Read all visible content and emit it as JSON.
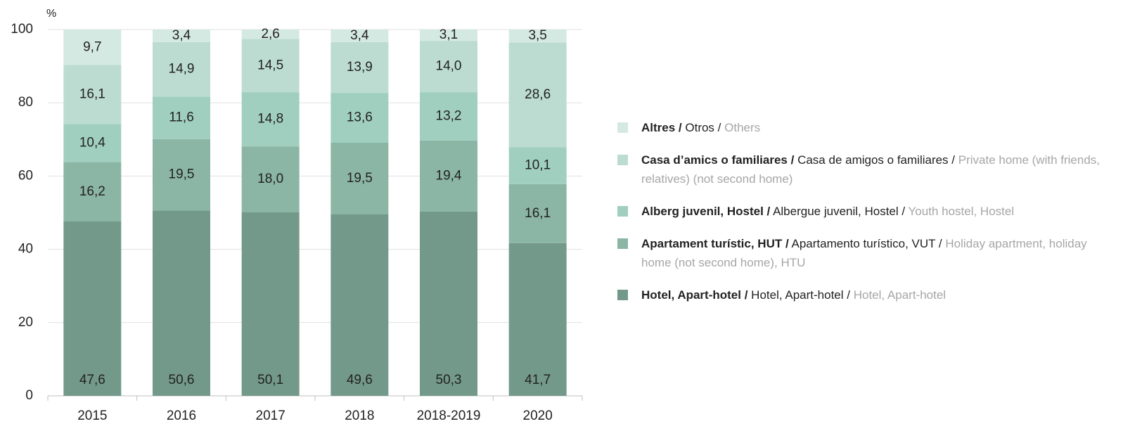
{
  "chart_data": {
    "type": "bar",
    "stacked": true,
    "ylabel": "%",
    "categories": [
      "2015",
      "2016",
      "2017",
      "2018",
      "2018-2019",
      "2020"
    ],
    "ylim": [
      0,
      100
    ],
    "yticks": [
      0,
      20,
      40,
      60,
      80,
      100
    ],
    "grid": true,
    "series": [
      {
        "name": [
          "Hotel, Apart-hotel /",
          "Hotel, Apart-hotel /",
          "Hotel, Apart-hotel"
        ],
        "color": "#73998a",
        "values": [
          47.6,
          50.6,
          50.1,
          49.6,
          50.3,
          41.7
        ],
        "value_labels": [
          "47,6",
          "50,6",
          "50,1",
          "49,6",
          "50,3",
          "41,7"
        ]
      },
      {
        "name": [
          "Apartament turístic, HUT /",
          "Apartamento turístico, VUT /",
          "Holiday apartment, holiday home (not second home), HTU"
        ],
        "color": "#8bb5a5",
        "values": [
          16.2,
          19.5,
          18.0,
          19.5,
          19.4,
          16.1
        ],
        "value_labels": [
          "16,2",
          "19,5",
          "18,0",
          "19,5",
          "19,4",
          "16,1"
        ]
      },
      {
        "name": [
          "Alberg juvenil, Hostel /",
          "Albergue juvenil, Hostel /",
          "Youth hostel, Hostel"
        ],
        "color": "#a0cfbf",
        "values": [
          10.4,
          11.6,
          14.8,
          13.6,
          13.2,
          10.1
        ],
        "value_labels": [
          "10,4",
          "11,6",
          "14,8",
          "13,6",
          "13,2",
          "10,1"
        ]
      },
      {
        "name": [
          "Casa d’amics o familiares /",
          "Casa de amigos o familiares /",
          "Private home (with friends, relatives) (not second home)"
        ],
        "color": "#bcdcd2",
        "values": [
          16.1,
          14.9,
          14.5,
          13.9,
          14.0,
          28.6
        ],
        "value_labels": [
          "16,1",
          "14,9",
          "14,5",
          "13,9",
          "14,0",
          "28,6"
        ]
      },
      {
        "name": [
          "Altres /",
          "Otros /",
          "Others"
        ],
        "color": "#d5e9e3",
        "values": [
          9.7,
          3.4,
          2.6,
          3.4,
          3.1,
          3.5
        ],
        "value_labels": [
          "9,7",
          "3,4",
          "2,6",
          "3,4",
          "3,1",
          "3,5"
        ]
      }
    ]
  }
}
